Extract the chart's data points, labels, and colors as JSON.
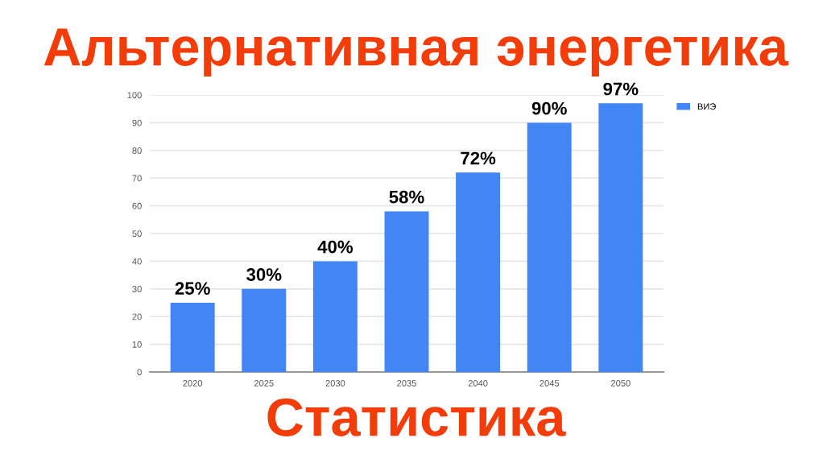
{
  "chart_data": {
    "type": "bar",
    "title": "Альтернативная энергетика",
    "annotations": [
      "Статистика"
    ],
    "categories": [
      "2020",
      "2025",
      "2030",
      "2035",
      "2040",
      "2045",
      "2050"
    ],
    "series": [
      {
        "name": "ВИЭ",
        "color": "#4285f4",
        "values": [
          25,
          30,
          40,
          58,
          72,
          90,
          97
        ],
        "value_labels": [
          "25%",
          "30%",
          "40%",
          "58%",
          "72%",
          "90%",
          "97%"
        ]
      }
    ],
    "ylim": [
      0,
      100
    ],
    "yticks": [
      0,
      10,
      20,
      30,
      40,
      50,
      60,
      70,
      80,
      90,
      100
    ],
    "grid": "y",
    "legend": "top right"
  }
}
